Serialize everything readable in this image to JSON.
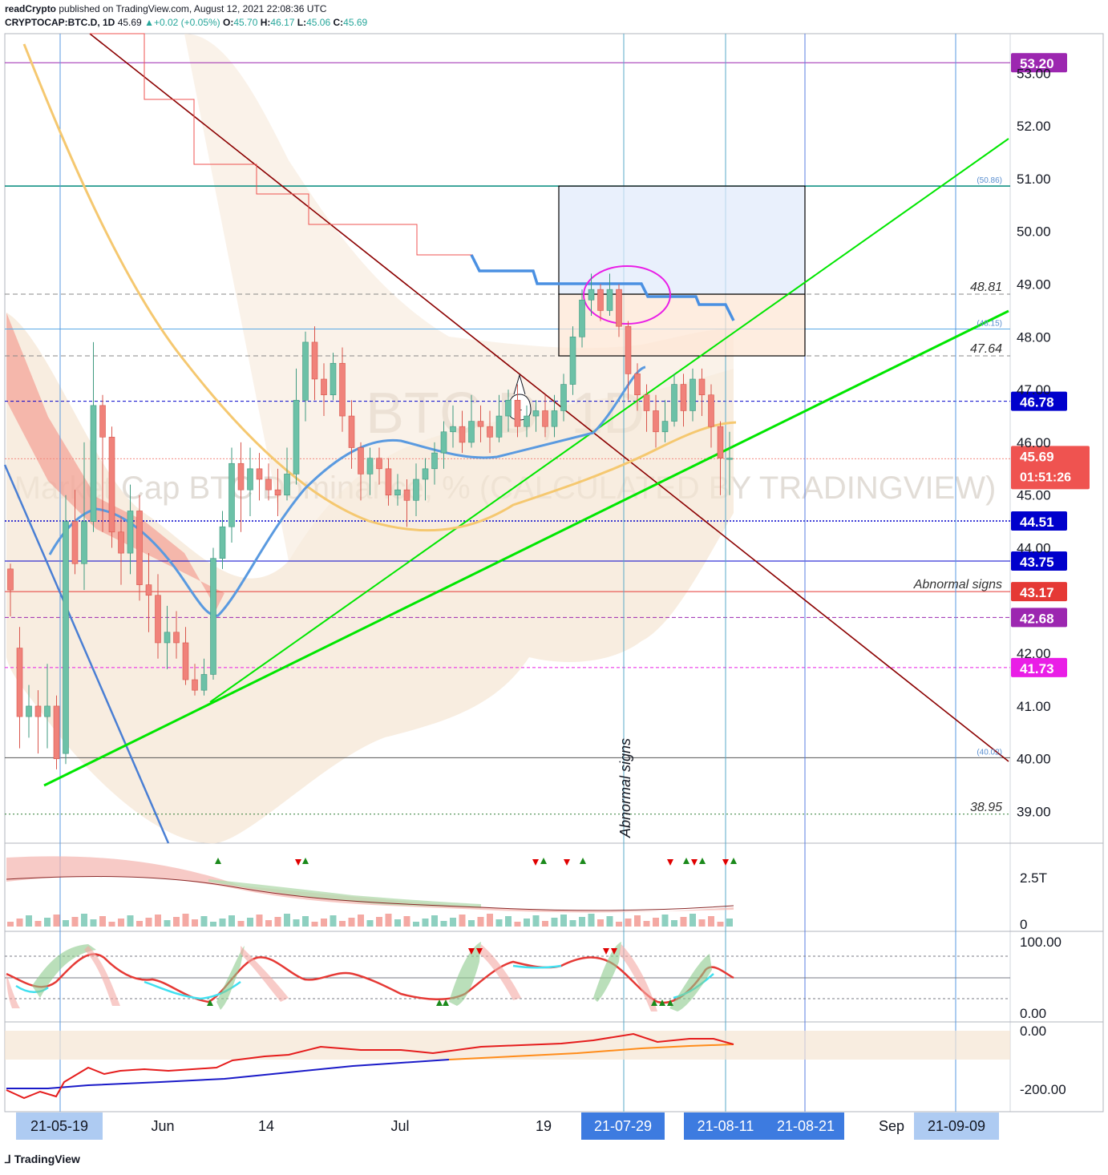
{
  "header": {
    "publisher": "readCrypto",
    "published_text": "published on TradingView.com, August 12, 2021 22:08:36 UTC",
    "symbol": "CRYPTOCAP:BTC.D, 1D",
    "last": "45.69",
    "change": "+0.02 (+0.05%)",
    "open": "45.70",
    "high": "46.17",
    "low": "45.06",
    "close": "45.69",
    "o_label": "O:",
    "h_label": "H:",
    "l_label": "L:",
    "c_label": "C:"
  },
  "watermark": {
    "symbol": "BTC.D, 1D",
    "description": "Market Cap BTC Dominance, % (CALCULATED BY TRADINGVIEW)"
  },
  "footer": {
    "logo_text": "TradingView"
  },
  "colors": {
    "up": "#26a69a",
    "down": "#ef5350",
    "trend_green": "#00e600",
    "trend_darkred": "#8b0000",
    "trend_blue": "#4a7fd4",
    "ma_yellow": "#f5c870",
    "ma_blue": "#5a9ae0",
    "band": "#f5e6d3"
  },
  "chart_data": {
    "type": "candlestick",
    "y_range": [
      38.4,
      53.75
    ],
    "x_range": [
      0,
      101
    ],
    "y_ticks": [
      "39.00",
      "40.00",
      "41.00",
      "42.00",
      "44.00",
      "45.00",
      "46.00",
      "47.00",
      "48.00",
      "49.00",
      "50.00",
      "51.00",
      "52.00",
      "53.00"
    ],
    "y_tick_values": [
      39,
      40,
      41,
      42,
      44,
      45,
      46,
      47,
      48,
      49,
      50,
      51,
      52,
      53
    ],
    "x_ticks": [
      {
        "label": "Jun",
        "x": 13
      },
      {
        "label": "14",
        "x": 27
      },
      {
        "label": "Jul",
        "x": 44
      },
      {
        "label": "19",
        "x": 62
      },
      {
        "label": "Sep",
        "x": 105
      }
    ],
    "x_highlight_labels": [
      {
        "label": "21-05-19",
        "x": 0
      },
      {
        "label": "21-07-29",
        "x": 72
      },
      {
        "label": "21-08-11",
        "x": 86
      },
      {
        "label": "21-08-21",
        "x": 96
      },
      {
        "label": "21-09-09",
        "x": 115
      }
    ],
    "price_tags": [
      {
        "label": "53.20",
        "value": 53.2,
        "color": "#9c27b0"
      },
      {
        "label": "46.78",
        "value": 46.78,
        "color": "#0000cc"
      },
      {
        "label": "45.69",
        "value": 45.69,
        "color": "#ef5350",
        "sub": "01:51:26"
      },
      {
        "label": "44.51",
        "value": 44.51,
        "color": "#0000cc"
      },
      {
        "label": "43.75",
        "value": 43.75,
        "color": "#0000cc"
      },
      {
        "label": "43.17",
        "value": 43.17,
        "color": "#e53935"
      },
      {
        "label": "42.68",
        "value": 42.68,
        "color": "#9c27b0"
      },
      {
        "label": "41.73",
        "value": 41.73,
        "color": "#e91ee6"
      }
    ],
    "level_labels": [
      {
        "label": "(50.86)",
        "value": 50.86
      },
      {
        "label": "48.81",
        "value": 48.81
      },
      {
        "label": "(48.15)",
        "value": 48.15
      },
      {
        "label": "47.64",
        "value": 47.64
      },
      {
        "label": "Abnormal signs",
        "value": 43.17
      },
      {
        "label": "(40.02)",
        "value": 40.02
      },
      {
        "label": "38.95",
        "value": 38.95
      }
    ],
    "vertical_label": "Abnormal signs",
    "callout_label": "1",
    "candles": [
      [
        0,
        43.6,
        43.2,
        43.7,
        42.7
      ],
      [
        1,
        42.1,
        40.8,
        42.5,
        40.2
      ],
      [
        2,
        40.8,
        41.0,
        41.4,
        40.4
      ],
      [
        3,
        41.0,
        40.8,
        41.3,
        40.1
      ],
      [
        4,
        40.8,
        41.0,
        41.8,
        40.2
      ],
      [
        5,
        41.0,
        40.0,
        41.2,
        39.8
      ],
      [
        6,
        40.1,
        44.5,
        45.0,
        39.9
      ],
      [
        7,
        44.5,
        43.7,
        45.1,
        43.5
      ],
      [
        8,
        43.7,
        44.5,
        46.0,
        43.2
      ],
      [
        9,
        44.5,
        46.7,
        47.9,
        44.3
      ],
      [
        10,
        46.7,
        46.1,
        46.9,
        44.3
      ],
      [
        11,
        46.1,
        44.3,
        46.3,
        44.0
      ],
      [
        12,
        44.3,
        43.9,
        44.6,
        43.3
      ],
      [
        13,
        43.9,
        44.7,
        45.2,
        43.5
      ],
      [
        14,
        44.7,
        43.3,
        45.0,
        43.0
      ],
      [
        15,
        43.3,
        43.1,
        43.9,
        42.4
      ],
      [
        16,
        43.1,
        42.2,
        43.5,
        41.9
      ],
      [
        17,
        42.2,
        42.4,
        42.9,
        41.7
      ],
      [
        18,
        42.4,
        42.2,
        42.8,
        41.9
      ],
      [
        19,
        42.2,
        41.5,
        42.5,
        41.4
      ],
      [
        20,
        41.5,
        41.3,
        41.8,
        41.2
      ],
      [
        21,
        41.3,
        41.6,
        41.9,
        41.2
      ],
      [
        22,
        41.6,
        43.8,
        44.0,
        41.5
      ],
      [
        23,
        43.8,
        44.4,
        44.7,
        43.6
      ],
      [
        24,
        44.4,
        45.6,
        45.9,
        44.1
      ],
      [
        25,
        45.6,
        45.1,
        46.0,
        44.3
      ],
      [
        26,
        45.1,
        45.5,
        45.9,
        44.6
      ],
      [
        27,
        45.5,
        45.3,
        45.8,
        44.9
      ],
      [
        28,
        45.3,
        45.1,
        45.6,
        44.9
      ],
      [
        29,
        45.1,
        45.0,
        45.5,
        44.6
      ],
      [
        30,
        45.0,
        45.4,
        45.9,
        44.9
      ],
      [
        31,
        45.4,
        46.8,
        47.4,
        45.2
      ],
      [
        32,
        46.8,
        47.9,
        48.1,
        46.4
      ],
      [
        33,
        47.9,
        47.2,
        48.2,
        46.8
      ],
      [
        34,
        47.2,
        46.9,
        47.5,
        46.5
      ],
      [
        35,
        46.9,
        47.5,
        47.7,
        46.8
      ],
      [
        36,
        47.5,
        46.5,
        47.8,
        46.2
      ],
      [
        37,
        46.5,
        45.9,
        46.8,
        45.5
      ],
      [
        38,
        45.9,
        45.4,
        46.0,
        44.9
      ],
      [
        39,
        45.4,
        45.7,
        45.9,
        45.0
      ],
      [
        40,
        45.7,
        45.5,
        45.9,
        45.2
      ],
      [
        41,
        45.5,
        45.0,
        45.7,
        44.8
      ],
      [
        42,
        45.0,
        45.1,
        45.4,
        44.8
      ],
      [
        43,
        45.1,
        44.9,
        45.3,
        44.4
      ],
      [
        44,
        44.9,
        45.3,
        45.6,
        44.6
      ],
      [
        45,
        45.3,
        45.5,
        45.7,
        44.9
      ],
      [
        46,
        45.5,
        45.8,
        46.0,
        45.2
      ],
      [
        47,
        45.8,
        46.2,
        46.4,
        45.5
      ],
      [
        48,
        46.2,
        46.3,
        46.7,
        45.9
      ],
      [
        49,
        46.3,
        46.0,
        46.6,
        45.8
      ],
      [
        50,
        46.0,
        46.4,
        46.9,
        45.9
      ],
      [
        51,
        46.4,
        46.3,
        46.7,
        46.0
      ],
      [
        52,
        46.3,
        46.1,
        46.6,
        45.8
      ],
      [
        53,
        46.1,
        46.5,
        46.9,
        46.0
      ],
      [
        54,
        46.5,
        46.8,
        47.0,
        46.2
      ],
      [
        55,
        46.8,
        46.3,
        47.1,
        46.1
      ],
      [
        56,
        46.3,
        46.5,
        46.7,
        46.1
      ],
      [
        57,
        46.5,
        46.6,
        46.8,
        46.2
      ],
      [
        58,
        46.6,
        46.3,
        46.9,
        46.1
      ],
      [
        59,
        46.3,
        46.6,
        46.9,
        46.1
      ],
      [
        60,
        46.6,
        47.1,
        47.3,
        46.4
      ],
      [
        61,
        47.1,
        48.0,
        48.2,
        46.9
      ],
      [
        62,
        48.0,
        48.7,
        48.9,
        47.8
      ],
      [
        63,
        48.7,
        48.9,
        49.2,
        48.4
      ],
      [
        64,
        48.9,
        48.5,
        49.0,
        48.3
      ],
      [
        65,
        48.5,
        48.9,
        49.2,
        48.4
      ],
      [
        66,
        48.9,
        48.2,
        49.0,
        48.0
      ],
      [
        67,
        48.2,
        47.3,
        48.3,
        46.8
      ],
      [
        68,
        47.3,
        46.9,
        47.5,
        46.6
      ],
      [
        69,
        46.9,
        46.6,
        47.1,
        46.2
      ],
      [
        70,
        46.6,
        46.2,
        46.9,
        45.9
      ],
      [
        71,
        46.2,
        46.4,
        46.8,
        46.0
      ],
      [
        72,
        46.4,
        47.1,
        47.3,
        46.3
      ],
      [
        73,
        47.1,
        46.6,
        47.3,
        46.3
      ],
      [
        74,
        46.6,
        47.2,
        47.4,
        46.4
      ],
      [
        75,
        47.2,
        46.9,
        47.4,
        46.5
      ],
      [
        76,
        46.9,
        46.3,
        47.1,
        45.9
      ],
      [
        77,
        46.3,
        45.7,
        46.4,
        45.0
      ],
      [
        78,
        45.7,
        45.7,
        46.2,
        45.0
      ]
    ],
    "indicator_axes": {
      "volume": {
        "labels": [
          "2.5T",
          "0"
        ]
      },
      "oscillator": {
        "labels": [
          "100.00",
          "0.00"
        ]
      },
      "trend": {
        "labels": [
          "0.00",
          "-200.00"
        ]
      }
    }
  }
}
